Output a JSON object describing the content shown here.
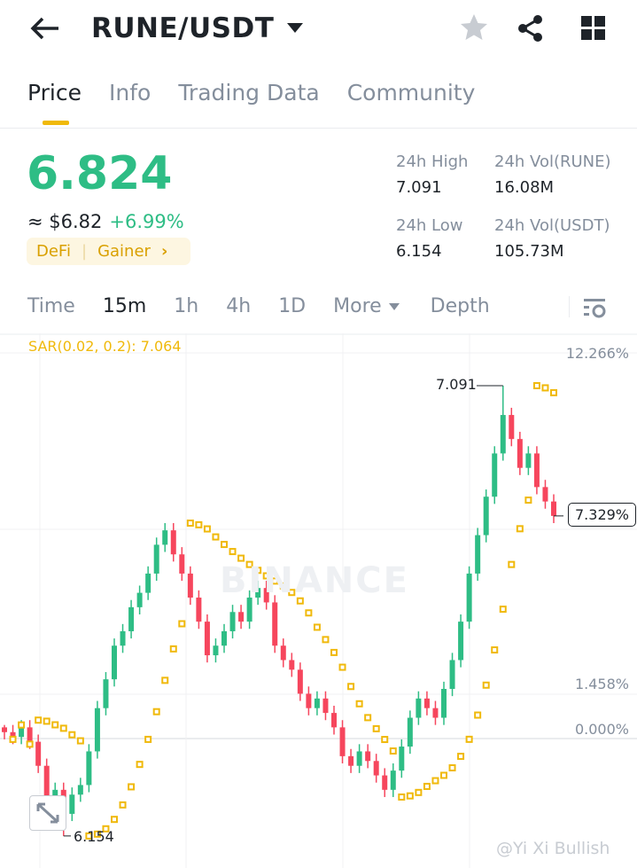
{
  "header": {
    "title": "RUNE/USDT",
    "back_icon": "arrow-left-icon",
    "star_icon": "star-icon",
    "share_icon": "share-icon",
    "grid_icon": "grid-icon"
  },
  "tabs": [
    {
      "label": "Price",
      "active": true
    },
    {
      "label": "Info"
    },
    {
      "label": "Trading Data"
    },
    {
      "label": "Community"
    }
  ],
  "ticker": {
    "price": "6.824",
    "approx": "≈ $6.82",
    "change": "+6.99%",
    "tags": [
      "DeFi",
      "Gainer"
    ],
    "stats": [
      {
        "label": "24h High",
        "value": "7.091"
      },
      {
        "label": "24h Vol(RUNE)",
        "value": "16.08M"
      },
      {
        "label": "24h Low",
        "value": "6.154"
      },
      {
        "label": "24h Vol(USDT)",
        "value": "105.73M"
      }
    ]
  },
  "intervals": {
    "items": [
      "Time",
      "15m",
      "1h",
      "4h",
      "1D",
      "More",
      "Depth"
    ],
    "active": "15m"
  },
  "colors": {
    "up": "#2ebd85",
    "down": "#f6465d",
    "sar": "#f0b90b",
    "accent": "#f0b90b"
  },
  "watermark": "BINANCE",
  "credit": "@Yi Xi Bullish",
  "chart_data": {
    "type": "candlestick",
    "indicator": "SAR(0.02, 0.2): 7.064",
    "sar_params": [
      0.02,
      0.2
    ],
    "right_axis_labels": [
      "12.266%",
      "1.458%",
      "0.000%"
    ],
    "current_label": "7.329%",
    "high_label": "7.091",
    "low_label": "6.154",
    "high": 7.091,
    "low": 6.154,
    "closes": [
      6.37,
      6.36,
      6.38,
      6.35,
      6.3,
      6.22,
      6.25,
      6.2,
      6.24,
      6.26,
      6.33,
      6.42,
      6.48,
      6.55,
      6.58,
      6.63,
      6.66,
      6.7,
      6.76,
      6.79,
      6.74,
      6.7,
      6.65,
      6.6,
      6.53,
      6.55,
      6.58,
      6.62,
      6.6,
      6.65,
      6.67,
      6.64,
      6.55,
      6.52,
      6.5,
      6.45,
      6.42,
      6.44,
      6.41,
      6.38,
      6.32,
      6.3,
      6.33,
      6.31,
      6.28,
      6.25,
      6.29,
      6.34,
      6.4,
      6.44,
      6.42,
      6.4,
      6.46,
      6.52,
      6.6,
      6.7,
      6.78,
      6.86,
      6.95,
      7.03,
      6.98,
      6.92,
      6.95,
      6.88,
      6.85,
      6.82
    ]
  }
}
